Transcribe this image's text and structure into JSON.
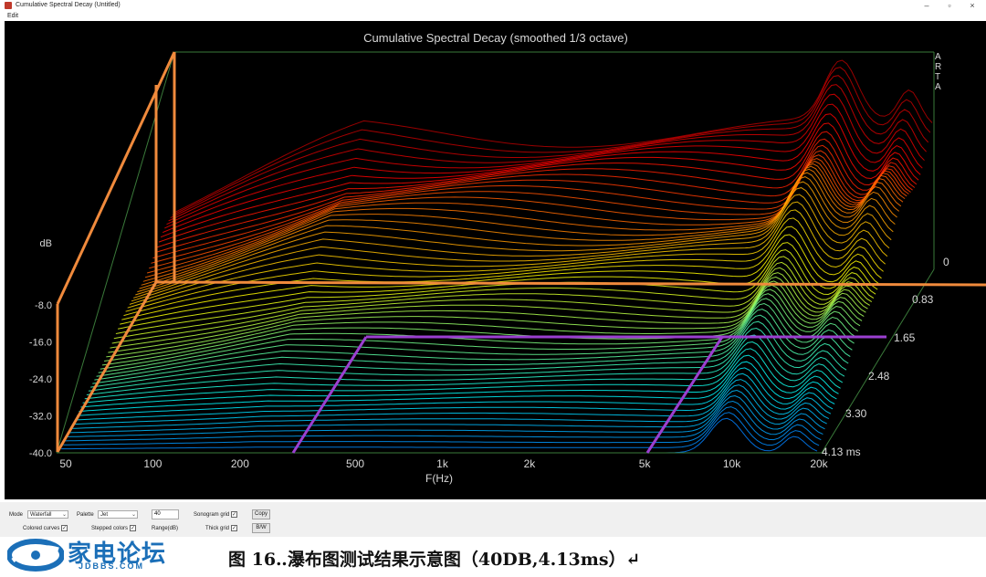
{
  "window": {
    "title": "Cumulative Spectral Decay  (Untitled)",
    "minimize": "–",
    "maximize": "▫",
    "close": "×"
  },
  "menu": {
    "edit": "Edit"
  },
  "chart_data": {
    "type": "waterfall",
    "title": "Cumulative Spectral Decay (smoothed 1/3 octave)",
    "watermark": "ARTA",
    "ylabel": "dB",
    "xlabel": "F(Hz)",
    "y_ticks": [
      "-8.0",
      "-16.0",
      "-24.0",
      "-32.0",
      "-40.0"
    ],
    "x_ticks": [
      "50",
      "100",
      "200",
      "500",
      "1k",
      "2k",
      "5k",
      "10k",
      "20k"
    ],
    "z_ticks": [
      "0",
      "0.83",
      "1.65",
      "2.48",
      "3.30",
      "4.13 ms"
    ],
    "ylim": [
      -40,
      0
    ],
    "xlim": [
      40,
      20000
    ],
    "zlim": [
      0,
      4.13
    ],
    "x_scale": "log",
    "palette": "Jet",
    "colors": {
      "box": "#3a7a3a",
      "marker_orange": "#f08a3c",
      "marker_purple": "#9b3fd1"
    }
  },
  "controls": {
    "mode_label": "Mode",
    "mode_value": "Waterfall",
    "palette_label": "Palette",
    "palette_value": "Jet",
    "range_value": "40",
    "range_label": "Range(dB)",
    "sonogram_grid_label": "Sonogram grid",
    "thick_grid_label": "Thick grid",
    "colored_curves_label": "Colored curves",
    "stepped_colors_label": "Stepped colors",
    "copy_label": "Copy",
    "bw_label": "B/W"
  },
  "logo": {
    "cn": "家电论坛",
    "en": "JDBBS.COM"
  },
  "caption": "图 16‥瀑布图测试结果示意图（40DB,4.13ms）↵"
}
